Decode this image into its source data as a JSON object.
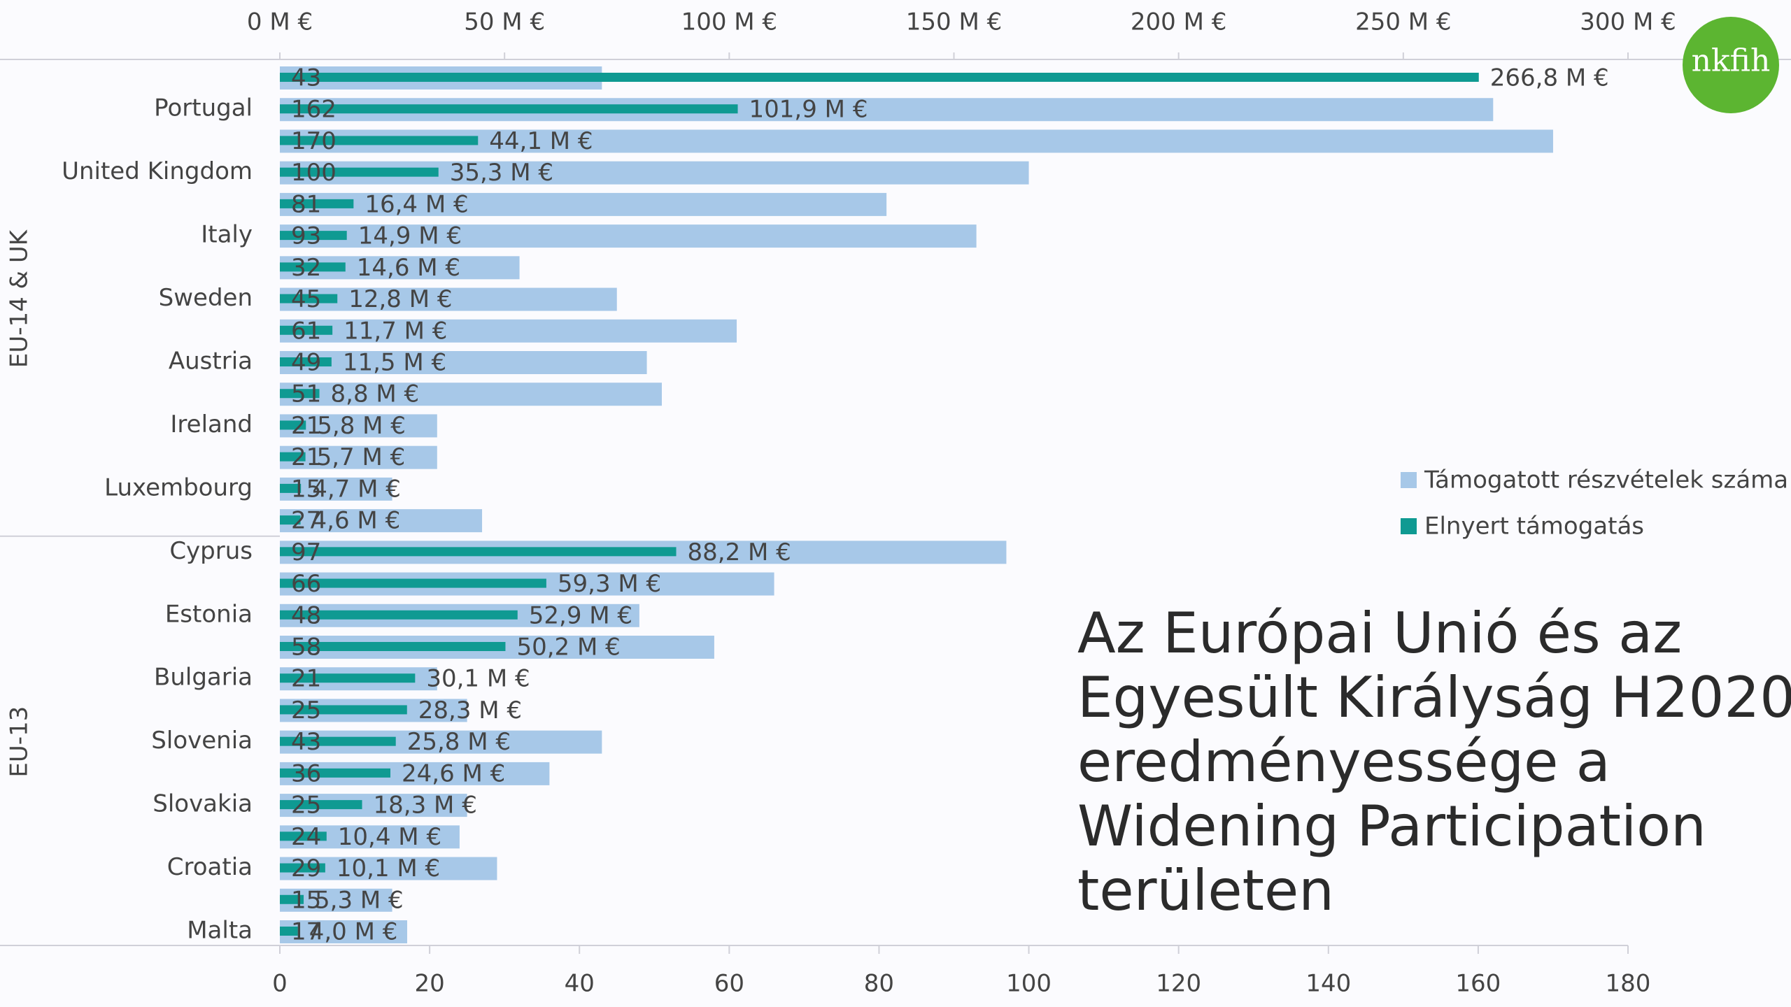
{
  "chart_data": {
    "type": "bar",
    "title": [
      "Az Európai Unió és az",
      "Egyesült Királyság H2020",
      "eredményessége a",
      "Widening Participation",
      "területen"
    ],
    "logo": "nkfih",
    "categories": [
      null,
      "Portugal",
      null,
      "United Kingdom",
      null,
      "Italy",
      null,
      "Sweden",
      null,
      "Austria",
      null,
      "Ireland",
      null,
      "Luxembourg",
      null,
      "Cyprus",
      null,
      "Estonia",
      null,
      "Bulgaria",
      null,
      "Slovenia",
      null,
      "Slovakia",
      null,
      "Croatia",
      null,
      "Malta"
    ],
    "groups": [
      {
        "label": "EU-14 & UK",
        "size": 15
      },
      {
        "label": "EU-13",
        "size": 13
      }
    ],
    "series": [
      {
        "name": "Támogatott részvételek száma",
        "color": "#a7c8e8",
        "values": [
          43,
          162,
          170,
          100,
          81,
          93,
          32,
          45,
          61,
          49,
          51,
          21,
          21,
          15,
          27,
          97,
          66,
          48,
          58,
          21,
          25,
          43,
          36,
          25,
          24,
          29,
          15,
          17
        ]
      },
      {
        "name": "Elnyert támogatás",
        "color": "#0f9a92",
        "axis": "x2",
        "values": [
          266.8,
          101.9,
          44.1,
          35.3,
          16.4,
          14.9,
          14.6,
          12.8,
          11.7,
          11.5,
          8.8,
          5.8,
          5.7,
          4.7,
          4.6,
          88.2,
          59.3,
          52.9,
          50.2,
          30.1,
          28.3,
          25.8,
          24.6,
          18.3,
          10.4,
          10.1,
          5.3,
          4.0
        ],
        "value_labels": [
          "266,8 M €",
          "101,9 M €",
          "44,1 M €",
          "35,3 M €",
          "16,4 M €",
          "14,9 M €",
          "14,6 M €",
          "12,8 M €",
          "11,7 M €",
          "11,5 M €",
          "8,8 M €",
          "5,8 M €",
          "5,7 M €",
          "4,7 M €",
          "4,6 M €",
          "88,2 M €",
          "59,3 M €",
          "52,9 M €",
          "50,2 M €",
          "30,1 M €",
          "28,3 M €",
          "25,8 M €",
          "24,6 M €",
          "18,3 M €",
          "10,4 M €",
          "10,1 M €",
          "5,3 M €",
          "4,0 M €"
        ]
      }
    ],
    "xlim": [
      0,
      180
    ],
    "xticks": [
      0,
      20,
      40,
      60,
      80,
      100,
      120,
      140,
      160,
      180
    ],
    "x2lim": [
      0,
      300
    ],
    "x2ticks": [
      {
        "value": 0,
        "label": "0 M €"
      },
      {
        "value": 50,
        "label": "50 M €"
      },
      {
        "value": 100,
        "label": "100 M €"
      },
      {
        "value": 150,
        "label": "150 M €"
      },
      {
        "value": 200,
        "label": "200 M €"
      },
      {
        "value": 250,
        "label": "250 M €"
      },
      {
        "value": 300,
        "label": "300 M €"
      }
    ],
    "logo_color": "#5cb531"
  }
}
